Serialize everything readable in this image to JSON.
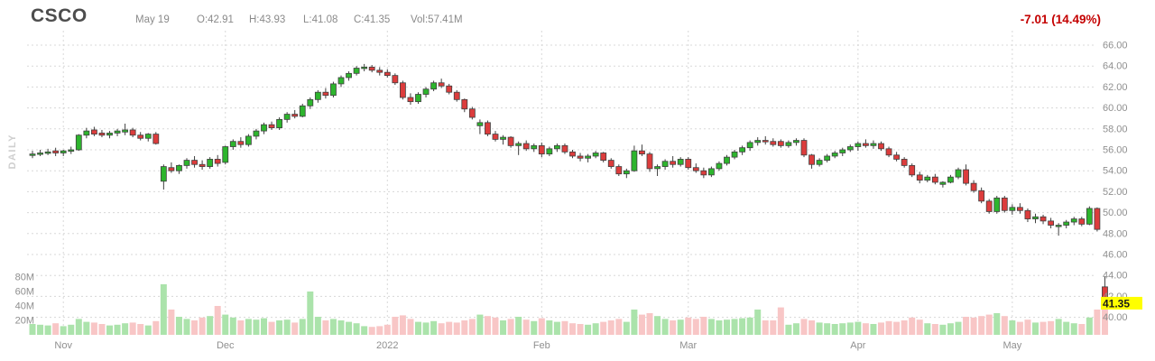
{
  "header": {
    "ticker": "CSCO",
    "date": "May 19",
    "open_label": "O:42.91",
    "high_label": "H:43.93",
    "low_label": "L:41.08",
    "close_label": "C:41.35",
    "volume_label": "Vol:57.41M",
    "change": "-7.01 (14.49%)",
    "change_color": "#c40000"
  },
  "left_axis_label": "DAILY",
  "last_price_tag": {
    "text": "41.35",
    "bg": "#ffff00",
    "fg": "#1a1a1a",
    "price": 41.35
  },
  "chart_data": {
    "type": "candlestick",
    "title": "CSCO daily candlestick chart with volume overlay, late Oct 2021 - May 19 2022",
    "price_axis": {
      "side": "right",
      "min": 40,
      "max": 66,
      "step": 2,
      "ticks": [
        "66.00",
        "64.00",
        "62.00",
        "60.00",
        "58.00",
        "56.00",
        "54.00",
        "52.00",
        "50.00",
        "48.00",
        "46.00",
        "44.00",
        "42.00",
        "40.00"
      ]
    },
    "volume_axis": {
      "side": "left",
      "ticks": [
        {
          "label": "80M",
          "value": 80
        },
        {
          "label": "60M",
          "value": 60
        },
        {
          "label": "40M",
          "value": 40
        },
        {
          "label": "20M",
          "value": 20
        }
      ]
    },
    "x_axis": {
      "month_ticks": [
        {
          "label": "Nov",
          "index": 4
        },
        {
          "label": "Dec",
          "index": 25
        },
        {
          "label": "2022",
          "index": 46
        },
        {
          "label": "Feb",
          "index": 66
        },
        {
          "label": "Mar",
          "index": 85
        },
        {
          "label": "Apr",
          "index": 107
        },
        {
          "label": "May",
          "index": 127
        }
      ]
    },
    "colors": {
      "up": "#2db52d",
      "down": "#dc3c3c",
      "body_border": "#404040",
      "wick": "#404040",
      "vol_up": "#abe3ab",
      "vol_down": "#f8c6c6",
      "grid": "#d8d8d8",
      "axis_text": "#8f8f8f"
    },
    "series_note": "each candle is [open, high, low, close, volume_millions]",
    "candles": [
      [
        55.5,
        55.9,
        55.2,
        55.6,
        15
      ],
      [
        55.6,
        56.0,
        55.4,
        55.7,
        14
      ],
      [
        55.7,
        56.1,
        55.5,
        55.8,
        13
      ],
      [
        55.9,
        56.2,
        55.4,
        55.7,
        16
      ],
      [
        55.7,
        56.0,
        55.4,
        55.9,
        12
      ],
      [
        55.9,
        56.3,
        55.6,
        56.0,
        14
      ],
      [
        56.0,
        57.5,
        55.9,
        57.4,
        22
      ],
      [
        57.4,
        58.1,
        57.1,
        57.8,
        18
      ],
      [
        57.9,
        58.2,
        57.3,
        57.5,
        17
      ],
      [
        57.6,
        57.9,
        57.2,
        57.4,
        15
      ],
      [
        57.4,
        57.8,
        57.1,
        57.6,
        13
      ],
      [
        57.6,
        58.0,
        57.3,
        57.8,
        14
      ],
      [
        57.7,
        58.5,
        57.4,
        57.9,
        16
      ],
      [
        57.9,
        58.1,
        57.2,
        57.4,
        17
      ],
      [
        57.4,
        57.7,
        56.9,
        57.1,
        15
      ],
      [
        57.1,
        57.6,
        56.8,
        57.5,
        13
      ],
      [
        57.5,
        57.7,
        56.5,
        56.6,
        19
      ],
      [
        53.0,
        54.6,
        52.2,
        54.4,
        70
      ],
      [
        54.3,
        54.8,
        53.8,
        54.0,
        35
      ],
      [
        54.0,
        54.6,
        53.7,
        54.5,
        25
      ],
      [
        54.5,
        55.2,
        54.2,
        55.0,
        22
      ],
      [
        55.0,
        55.4,
        54.3,
        54.6,
        20
      ],
      [
        54.6,
        55.0,
        54.1,
        54.4,
        24
      ],
      [
        54.4,
        55.3,
        54.2,
        55.1,
        26
      ],
      [
        55.1,
        55.5,
        54.4,
        54.7,
        40
      ],
      [
        54.8,
        56.4,
        54.6,
        56.3,
        28
      ],
      [
        56.3,
        57.0,
        56.0,
        56.8,
        24
      ],
      [
        56.8,
        57.2,
        56.2,
        56.5,
        20
      ],
      [
        56.5,
        57.5,
        56.3,
        57.3,
        22
      ],
      [
        57.3,
        58.0,
        57.0,
        57.8,
        21
      ],
      [
        57.8,
        58.6,
        57.5,
        58.4,
        23
      ],
      [
        58.4,
        58.7,
        57.9,
        58.1,
        18
      ],
      [
        58.1,
        59.1,
        57.9,
        58.9,
        20
      ],
      [
        58.9,
        59.6,
        58.6,
        59.4,
        21
      ],
      [
        59.4,
        59.8,
        59.0,
        59.2,
        17
      ],
      [
        59.2,
        60.4,
        59.1,
        60.2,
        22
      ],
      [
        60.2,
        61.0,
        59.9,
        60.8,
        60
      ],
      [
        60.8,
        61.7,
        60.5,
        61.5,
        25
      ],
      [
        61.5,
        61.9,
        60.9,
        61.2,
        20
      ],
      [
        61.2,
        62.5,
        61.0,
        62.3,
        22
      ],
      [
        62.3,
        63.1,
        62.0,
        62.9,
        20
      ],
      [
        62.9,
        63.5,
        62.6,
        63.3,
        18
      ],
      [
        63.3,
        64.0,
        63.1,
        63.8,
        16
      ],
      [
        63.8,
        64.2,
        63.5,
        63.9,
        12
      ],
      [
        63.9,
        64.1,
        63.4,
        63.6,
        11
      ],
      [
        63.6,
        63.9,
        63.1,
        63.4,
        12
      ],
      [
        63.4,
        63.7,
        62.9,
        63.1,
        14
      ],
      [
        63.1,
        63.3,
        62.2,
        62.4,
        25
      ],
      [
        62.4,
        62.6,
        60.8,
        61.0,
        27
      ],
      [
        61.0,
        61.4,
        60.3,
        60.6,
        22
      ],
      [
        60.6,
        61.5,
        60.4,
        61.3,
        18
      ],
      [
        61.3,
        62.0,
        61.0,
        61.8,
        17
      ],
      [
        61.8,
        62.6,
        61.6,
        62.4,
        19
      ],
      [
        62.4,
        62.8,
        61.9,
        62.1,
        16
      ],
      [
        62.1,
        62.3,
        61.3,
        61.5,
        18
      ],
      [
        61.5,
        61.7,
        60.6,
        60.8,
        17
      ],
      [
        60.8,
        60.9,
        59.6,
        59.9,
        20
      ],
      [
        59.9,
        60.1,
        58.9,
        59.1,
        22
      ],
      [
        58.3,
        58.9,
        57.5,
        58.6,
        28
      ],
      [
        58.6,
        58.8,
        57.3,
        57.5,
        26
      ],
      [
        57.5,
        57.8,
        56.8,
        57.0,
        24
      ],
      [
        57.0,
        57.4,
        56.5,
        57.2,
        20
      ],
      [
        57.2,
        57.3,
        56.2,
        56.4,
        22
      ],
      [
        56.4,
        56.8,
        55.5,
        56.6,
        25
      ],
      [
        56.6,
        56.9,
        55.9,
        56.1,
        21
      ],
      [
        56.1,
        56.6,
        55.8,
        56.4,
        19
      ],
      [
        56.4,
        56.7,
        55.3,
        55.6,
        23
      ],
      [
        55.6,
        56.3,
        55.4,
        56.1,
        20
      ],
      [
        56.1,
        56.6,
        55.8,
        56.4,
        18
      ],
      [
        56.4,
        56.6,
        55.6,
        55.8,
        19
      ],
      [
        55.8,
        56.0,
        55.2,
        55.4,
        16
      ],
      [
        55.4,
        55.7,
        54.9,
        55.2,
        15
      ],
      [
        55.2,
        55.6,
        54.8,
        55.4,
        14
      ],
      [
        55.4,
        55.9,
        55.2,
        55.7,
        16
      ],
      [
        55.7,
        55.8,
        54.8,
        55.0,
        18
      ],
      [
        55.0,
        55.2,
        54.2,
        54.4,
        20
      ],
      [
        54.4,
        54.6,
        53.5,
        53.7,
        22
      ],
      [
        53.7,
        54.2,
        53.3,
        54.0,
        18
      ],
      [
        54.0,
        56.4,
        53.9,
        55.9,
        35
      ],
      [
        55.9,
        56.5,
        55.4,
        55.6,
        28
      ],
      [
        55.6,
        55.8,
        53.9,
        54.2,
        30
      ],
      [
        54.2,
        54.6,
        53.5,
        54.4,
        26
      ],
      [
        54.4,
        55.1,
        54.1,
        54.9,
        22
      ],
      [
        54.9,
        55.4,
        54.3,
        54.6,
        20
      ],
      [
        54.6,
        55.3,
        54.4,
        55.1,
        21
      ],
      [
        55.1,
        55.3,
        54.1,
        54.3,
        24
      ],
      [
        54.3,
        54.7,
        53.8,
        54.0,
        22
      ],
      [
        54.0,
        54.3,
        53.3,
        53.6,
        25
      ],
      [
        53.6,
        54.4,
        53.4,
        54.2,
        22
      ],
      [
        54.2,
        54.9,
        54.0,
        54.7,
        20
      ],
      [
        54.7,
        55.5,
        54.5,
        55.3,
        21
      ],
      [
        55.3,
        56.0,
        55.1,
        55.8,
        22
      ],
      [
        55.8,
        56.4,
        55.5,
        56.2,
        23
      ],
      [
        56.2,
        56.9,
        55.9,
        56.7,
        24
      ],
      [
        56.7,
        57.2,
        56.4,
        56.9,
        35
      ],
      [
        56.9,
        57.3,
        56.5,
        56.8,
        20
      ],
      [
        56.8,
        57.1,
        56.3,
        56.5,
        20
      ],
      [
        56.8,
        57.0,
        56.2,
        56.4,
        38
      ],
      [
        56.4,
        56.9,
        56.2,
        56.7,
        14
      ],
      [
        56.7,
        57.1,
        56.4,
        56.9,
        16
      ],
      [
        56.9,
        57.1,
        55.3,
        55.5,
        22
      ],
      [
        55.5,
        55.6,
        54.2,
        54.6,
        20
      ],
      [
        54.6,
        55.2,
        54.4,
        55.0,
        17
      ],
      [
        55.0,
        55.6,
        54.8,
        55.4,
        16
      ],
      [
        55.4,
        55.9,
        55.2,
        55.7,
        15
      ],
      [
        55.7,
        56.2,
        55.4,
        56.0,
        16
      ],
      [
        56.0,
        56.5,
        55.8,
        56.3,
        17
      ],
      [
        56.3,
        56.8,
        55.9,
        56.6,
        18
      ],
      [
        56.6,
        57.0,
        56.2,
        56.4,
        16
      ],
      [
        56.4,
        56.9,
        56.1,
        56.6,
        15
      ],
      [
        56.6,
        56.8,
        55.9,
        56.1,
        17
      ],
      [
        56.1,
        56.3,
        55.3,
        55.5,
        19
      ],
      [
        55.5,
        55.8,
        54.9,
        55.1,
        18
      ],
      [
        55.1,
        55.3,
        54.3,
        54.5,
        20
      ],
      [
        54.5,
        54.7,
        53.4,
        53.6,
        24
      ],
      [
        53.6,
        53.9,
        52.8,
        53.1,
        21
      ],
      [
        53.1,
        53.6,
        52.9,
        53.4,
        16
      ],
      [
        53.4,
        53.7,
        52.7,
        52.9,
        15
      ],
      [
        52.7,
        53.0,
        52.4,
        52.9,
        14
      ],
      [
        52.9,
        53.6,
        52.8,
        53.4,
        16
      ],
      [
        53.4,
        54.3,
        53.2,
        54.1,
        18
      ],
      [
        54.1,
        54.6,
        52.6,
        52.8,
        25
      ],
      [
        52.8,
        53.1,
        51.9,
        52.1,
        24
      ],
      [
        52.1,
        52.4,
        50.9,
        51.1,
        26
      ],
      [
        51.1,
        51.3,
        49.9,
        50.1,
        28
      ],
      [
        50.1,
        51.6,
        49.9,
        51.4,
        30
      ],
      [
        51.4,
        51.6,
        50.0,
        50.2,
        26
      ],
      [
        50.2,
        50.8,
        49.8,
        50.5,
        20
      ],
      [
        50.5,
        50.9,
        49.9,
        50.2,
        18
      ],
      [
        50.2,
        50.4,
        49.1,
        49.4,
        21
      ],
      [
        49.4,
        49.9,
        49.0,
        49.6,
        17
      ],
      [
        49.6,
        49.8,
        48.9,
        49.2,
        18
      ],
      [
        49.2,
        49.5,
        48.5,
        48.8,
        19
      ],
      [
        48.8,
        49.0,
        47.8,
        48.8,
        22
      ],
      [
        48.8,
        49.3,
        48.5,
        49.1,
        18
      ],
      [
        49.1,
        49.6,
        48.8,
        49.4,
        16
      ],
      [
        49.4,
        49.6,
        48.7,
        48.9,
        15
      ],
      [
        48.9,
        50.6,
        48.8,
        50.4,
        24
      ],
      [
        50.4,
        50.5,
        48.2,
        48.4,
        35
      ],
      [
        42.91,
        43.93,
        41.08,
        41.35,
        57.41
      ]
    ]
  }
}
